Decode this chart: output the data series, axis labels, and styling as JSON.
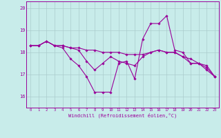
{
  "bg_color": "#c8ecea",
  "line_color": "#990099",
  "grid_color": "#aacccc",
  "xlabel": "Windchill (Refroidissement éolien,°C)",
  "hours": [
    0,
    1,
    2,
    3,
    4,
    5,
    6,
    7,
    8,
    9,
    10,
    11,
    12,
    13,
    14,
    15,
    16,
    17,
    18,
    19,
    20,
    21,
    22,
    23
  ],
  "line1": [
    18.3,
    18.3,
    18.5,
    18.3,
    18.3,
    18.2,
    18.2,
    18.1,
    18.1,
    18.0,
    18.0,
    18.0,
    17.9,
    17.9,
    17.9,
    18.0,
    18.1,
    18.0,
    18.0,
    17.8,
    17.7,
    17.5,
    17.4,
    16.9
  ],
  "line2": [
    18.3,
    18.3,
    18.5,
    18.3,
    18.3,
    18.2,
    18.1,
    17.6,
    17.2,
    17.5,
    17.8,
    17.6,
    17.5,
    17.4,
    17.8,
    18.0,
    18.1,
    18.0,
    18.0,
    17.8,
    17.5,
    17.5,
    17.3,
    16.9
  ],
  "line3": [
    18.3,
    18.3,
    18.5,
    18.3,
    18.2,
    17.7,
    17.4,
    16.9,
    16.2,
    16.2,
    16.2,
    17.5,
    17.6,
    16.8,
    18.6,
    19.3,
    19.3,
    19.65,
    18.1,
    18.0,
    17.5,
    17.5,
    17.2,
    16.9
  ],
  "ylim": [
    15.5,
    20.3
  ],
  "yticks": [
    16,
    17,
    18,
    19,
    20
  ],
  "xlim": [
    -0.5,
    23.5
  ]
}
